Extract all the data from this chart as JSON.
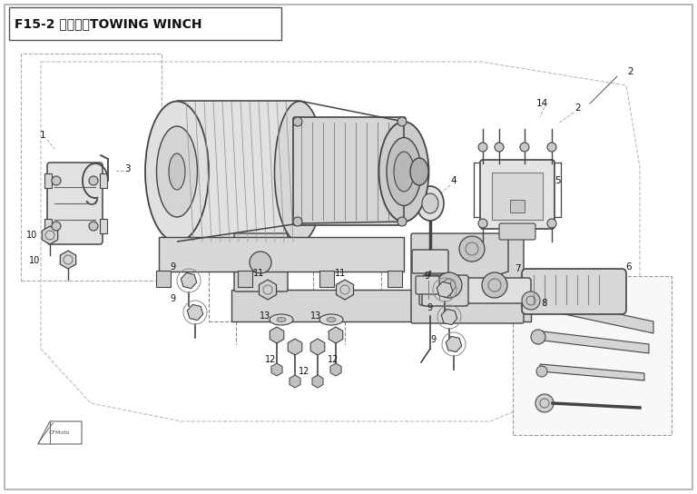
{
  "title": "F15-2 绩盘总成TOWING WINCH",
  "bg_color": "#ffffff",
  "line_color": "#444444",
  "fig_width": 7.68,
  "fig_height": 5.44,
  "dpi": 100
}
